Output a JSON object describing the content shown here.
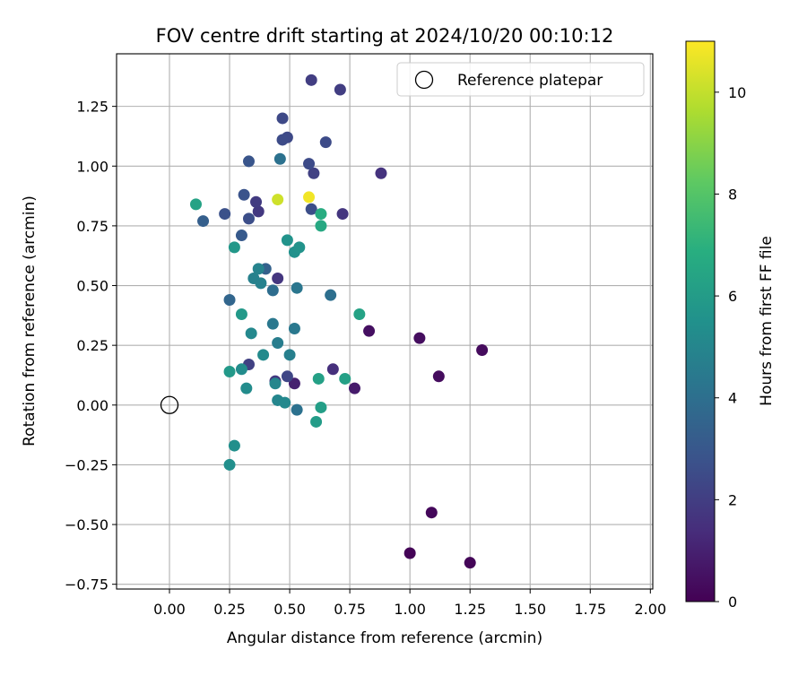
{
  "chart_data": {
    "type": "scatter",
    "title": "FOV centre drift starting at 2024/10/20 00:10:12",
    "xlabel": "Angular distance from reference (arcmin)",
    "ylabel": "Rotation from reference (arcmin)",
    "xlim": [
      -0.22,
      2.01
    ],
    "ylim": [
      -0.77,
      1.47
    ],
    "xticks": [
      0.0,
      0.25,
      0.5,
      0.75,
      1.0,
      1.25,
      1.5,
      1.75,
      2.0
    ],
    "xtick_labels": [
      "0.00",
      "0.25",
      "0.50",
      "0.75",
      "1.00",
      "1.25",
      "1.50",
      "1.75",
      "2.00"
    ],
    "yticks": [
      -0.75,
      -0.5,
      -0.25,
      0.0,
      0.25,
      0.5,
      0.75,
      1.0,
      1.25
    ],
    "ytick_labels": [
      "−0.75",
      "−0.50",
      "−0.25",
      "0.00",
      "0.25",
      "0.50",
      "0.75",
      "1.00",
      "1.25"
    ],
    "grid": true,
    "legend": {
      "position": "top-right",
      "entries": [
        "Reference platepar"
      ]
    },
    "reference_point": {
      "x": 0.0,
      "y": 0.0,
      "label": "Reference platepar"
    },
    "colorbar": {
      "label": "Hours from first FF file",
      "colormap": "viridis",
      "range": [
        0,
        11
      ],
      "ticks": [
        0,
        2,
        4,
        6,
        8,
        10
      ],
      "tick_labels": [
        "0",
        "2",
        "4",
        "6",
        "8",
        "10"
      ]
    },
    "points": [
      {
        "x": 1.0,
        "y": -0.62,
        "c": 0.1
      },
      {
        "x": 1.25,
        "y": -0.66,
        "c": 0.15
      },
      {
        "x": 1.09,
        "y": -0.45,
        "c": 0.2
      },
      {
        "x": 1.3,
        "y": 0.23,
        "c": 0.3
      },
      {
        "x": 1.12,
        "y": 0.12,
        "c": 0.35
      },
      {
        "x": 1.04,
        "y": 0.28,
        "c": 0.4
      },
      {
        "x": 0.83,
        "y": 0.31,
        "c": 0.45
      },
      {
        "x": 0.77,
        "y": 0.07,
        "c": 0.8
      },
      {
        "x": 0.52,
        "y": 0.09,
        "c": 1.0
      },
      {
        "x": 0.68,
        "y": 0.15,
        "c": 1.5
      },
      {
        "x": 0.88,
        "y": 0.97,
        "c": 1.6
      },
      {
        "x": 0.72,
        "y": 0.8,
        "c": 1.7
      },
      {
        "x": 0.45,
        "y": 0.53,
        "c": 1.7
      },
      {
        "x": 0.44,
        "y": 0.1,
        "c": 1.8
      },
      {
        "x": 0.37,
        "y": 0.81,
        "c": 1.8
      },
      {
        "x": 0.36,
        "y": 0.85,
        "c": 1.9
      },
      {
        "x": 0.59,
        "y": 1.36,
        "c": 2.0
      },
      {
        "x": 0.71,
        "y": 1.32,
        "c": 2.0
      },
      {
        "x": 0.6,
        "y": 0.97,
        "c": 2.1
      },
      {
        "x": 0.33,
        "y": 0.17,
        "c": 2.1
      },
      {
        "x": 0.49,
        "y": 0.12,
        "c": 2.3
      },
      {
        "x": 0.47,
        "y": 1.2,
        "c": 2.4
      },
      {
        "x": 0.49,
        "y": 1.12,
        "c": 2.4
      },
      {
        "x": 0.65,
        "y": 1.1,
        "c": 2.5
      },
      {
        "x": 0.47,
        "y": 1.11,
        "c": 2.5
      },
      {
        "x": 0.58,
        "y": 1.01,
        "c": 2.5
      },
      {
        "x": 0.59,
        "y": 0.82,
        "c": 2.6
      },
      {
        "x": 0.33,
        "y": 0.78,
        "c": 2.6
      },
      {
        "x": 0.23,
        "y": 0.8,
        "c": 2.7
      },
      {
        "x": 0.31,
        "y": 0.88,
        "c": 2.8
      },
      {
        "x": 0.33,
        "y": 1.02,
        "c": 2.9
      },
      {
        "x": 0.3,
        "y": 0.71,
        "c": 3.1
      },
      {
        "x": 0.14,
        "y": 0.77,
        "c": 3.3
      },
      {
        "x": 0.4,
        "y": 0.57,
        "c": 3.4
      },
      {
        "x": 0.25,
        "y": 0.44,
        "c": 3.6
      },
      {
        "x": 0.43,
        "y": 0.48,
        "c": 3.9
      },
      {
        "x": 0.67,
        "y": 0.46,
        "c": 4.0
      },
      {
        "x": 0.46,
        "y": 1.03,
        "c": 4.1
      },
      {
        "x": 0.53,
        "y": -0.02,
        "c": 4.1
      },
      {
        "x": 0.53,
        "y": 0.49,
        "c": 4.3
      },
      {
        "x": 0.52,
        "y": 0.32,
        "c": 4.4
      },
      {
        "x": 0.43,
        "y": 0.34,
        "c": 4.4
      },
      {
        "x": 0.45,
        "y": 0.26,
        "c": 4.6
      },
      {
        "x": 0.5,
        "y": 0.21,
        "c": 4.7
      },
      {
        "x": 0.35,
        "y": 0.53,
        "c": 4.8
      },
      {
        "x": 0.38,
        "y": 0.51,
        "c": 4.8
      },
      {
        "x": 0.37,
        "y": 0.57,
        "c": 4.9
      },
      {
        "x": 0.44,
        "y": 0.09,
        "c": 5.0
      },
      {
        "x": 0.45,
        "y": 0.02,
        "c": 5.0
      },
      {
        "x": 0.48,
        "y": 0.01,
        "c": 5.1
      },
      {
        "x": 0.34,
        "y": 0.3,
        "c": 5.1
      },
      {
        "x": 0.39,
        "y": 0.21,
        "c": 5.2
      },
      {
        "x": 0.32,
        "y": 0.07,
        "c": 5.3
      },
      {
        "x": 0.3,
        "y": 0.15,
        "c": 5.3
      },
      {
        "x": 0.25,
        "y": -0.25,
        "c": 5.4
      },
      {
        "x": 0.27,
        "y": -0.17,
        "c": 5.4
      },
      {
        "x": 0.52,
        "y": 0.64,
        "c": 5.5
      },
      {
        "x": 0.54,
        "y": 0.66,
        "c": 5.6
      },
      {
        "x": 0.49,
        "y": 0.69,
        "c": 5.6
      },
      {
        "x": 0.27,
        "y": 0.66,
        "c": 5.8
      },
      {
        "x": 0.3,
        "y": 0.38,
        "c": 5.9
      },
      {
        "x": 0.25,
        "y": 0.14,
        "c": 5.9
      },
      {
        "x": 0.61,
        "y": -0.07,
        "c": 6.0
      },
      {
        "x": 0.63,
        "y": -0.01,
        "c": 6.1
      },
      {
        "x": 0.62,
        "y": 0.11,
        "c": 6.2
      },
      {
        "x": 0.73,
        "y": 0.11,
        "c": 6.2
      },
      {
        "x": 0.79,
        "y": 0.38,
        "c": 6.3
      },
      {
        "x": 0.11,
        "y": 0.84,
        "c": 6.3
      },
      {
        "x": 0.63,
        "y": 0.75,
        "c": 6.6
      },
      {
        "x": 0.63,
        "y": 0.8,
        "c": 6.8
      },
      {
        "x": 0.45,
        "y": 0.86,
        "c": 10.2
      },
      {
        "x": 0.58,
        "y": 0.87,
        "c": 10.8
      }
    ]
  }
}
